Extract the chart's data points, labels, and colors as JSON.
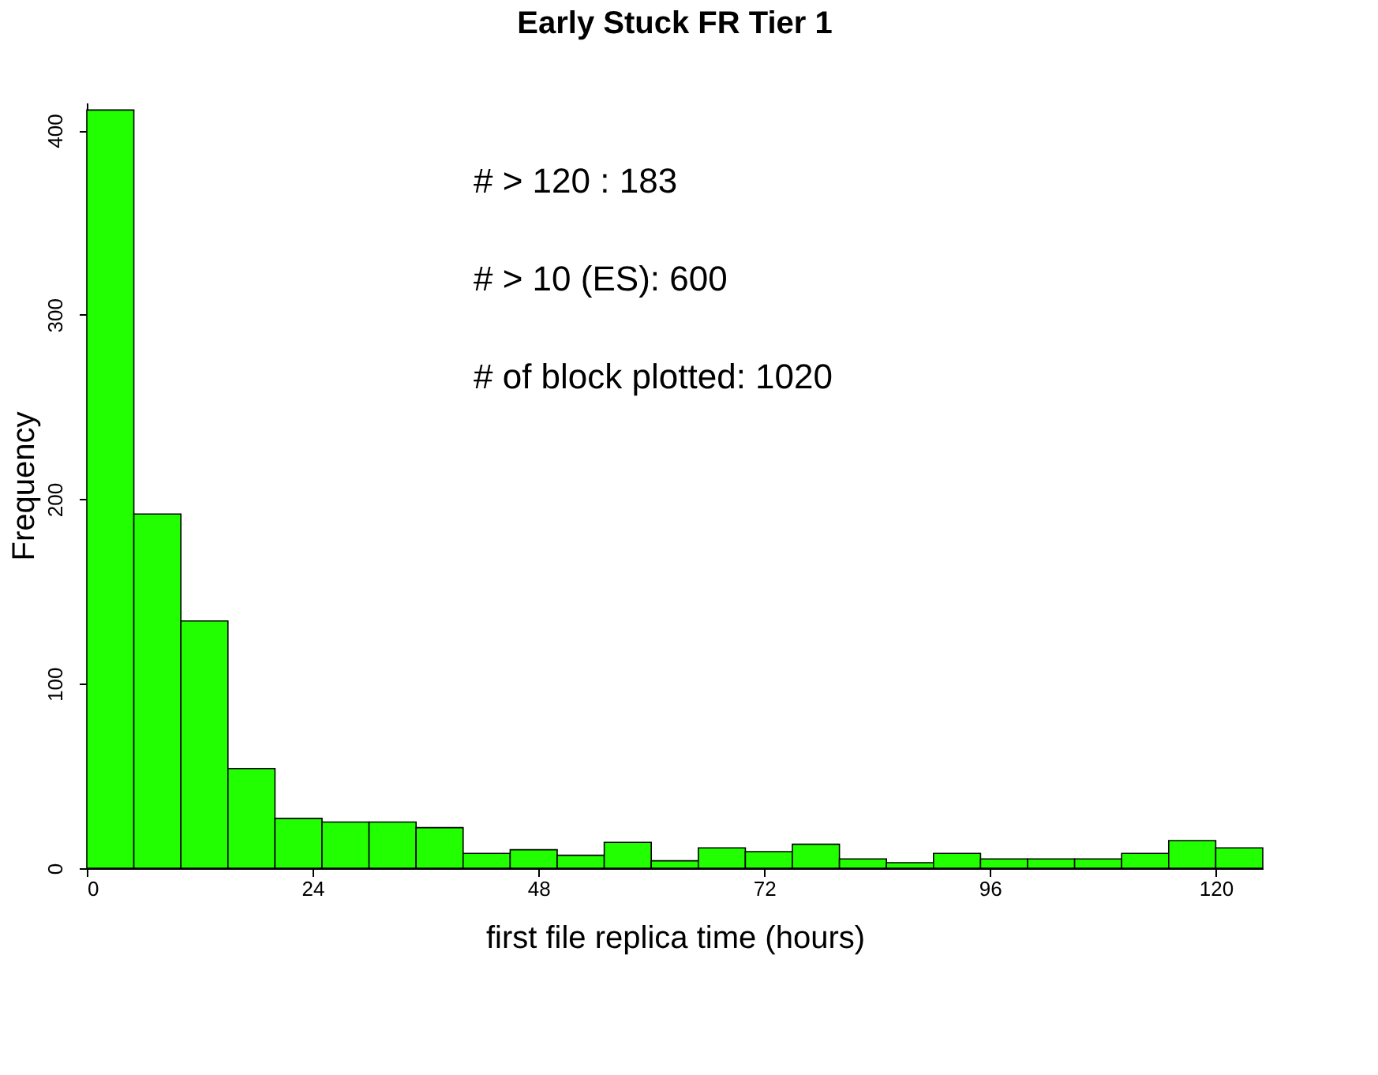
{
  "chart_data": {
    "type": "histogram",
    "title": "Early Stuck FR Tier 1",
    "xlabel": "first file replica time (hours)",
    "ylabel": "Frequency",
    "bins": [
      0,
      5,
      10,
      15,
      20,
      25,
      30,
      35,
      40,
      45,
      50,
      55,
      60,
      65,
      70,
      75,
      80,
      85,
      90,
      95,
      100,
      105,
      110,
      115,
      120,
      125
    ],
    "values": [
      411,
      192,
      134,
      54,
      27,
      25,
      25,
      22,
      8,
      10,
      7,
      14,
      4,
      11,
      9,
      13,
      5,
      3,
      8,
      5,
      5,
      5,
      8,
      15,
      11
    ],
    "color": "#22ff00",
    "xlim": [
      0,
      125
    ],
    "xticks": [
      0,
      24,
      48,
      72,
      96,
      120
    ],
    "ylim": [
      0,
      415
    ],
    "yticks": [
      0,
      100,
      200,
      300,
      400
    ],
    "grid": false,
    "annotations": [
      "# > 120 :  183",
      "# > 10 (ES):  600",
      "# of block plotted: 1020"
    ]
  }
}
